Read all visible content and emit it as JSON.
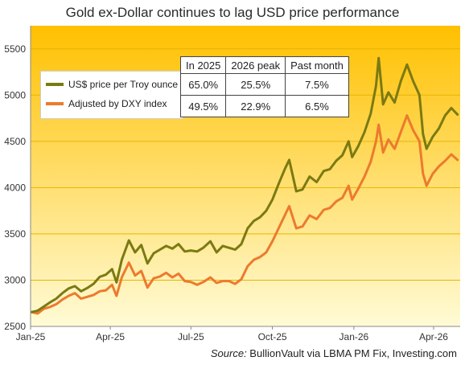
{
  "chart_data": {
    "type": "line",
    "title": "Gold ex-Dollar  continues  to lag USD price performance",
    "xlabel": "",
    "ylabel": "",
    "x_ticks": [
      "Jan-25",
      "Apr-25",
      "Jul-25",
      "Oct-25",
      "Jan-26",
      "Apr-26"
    ],
    "x_tick_dates": [
      "2025-01-01",
      "2025-04-01",
      "2025-07-01",
      "2025-10-01",
      "2026-01-01",
      "2026-04-01"
    ],
    "xlim": [
      "2025-01-01",
      "2026-05-01"
    ],
    "y_ticks": [
      2500,
      3000,
      3500,
      4000,
      4500,
      5000,
      5500
    ],
    "ylim": [
      2500,
      5750
    ],
    "grid": "horizontal",
    "legend_position": "top-left",
    "series": [
      {
        "name": "US$ price per Troy ounce",
        "color": "#7a7a12",
        "points": [
          [
            "2025-01-02",
            2655
          ],
          [
            "2025-01-09",
            2670
          ],
          [
            "2025-01-16",
            2715
          ],
          [
            "2025-01-23",
            2760
          ],
          [
            "2025-01-30",
            2800
          ],
          [
            "2025-02-06",
            2860
          ],
          [
            "2025-02-13",
            2910
          ],
          [
            "2025-02-20",
            2935
          ],
          [
            "2025-02-27",
            2880
          ],
          [
            "2025-03-06",
            2915
          ],
          [
            "2025-03-13",
            2960
          ],
          [
            "2025-03-20",
            3035
          ],
          [
            "2025-03-27",
            3060
          ],
          [
            "2025-04-03",
            3120
          ],
          [
            "2025-04-08",
            2975
          ],
          [
            "2025-04-14",
            3220
          ],
          [
            "2025-04-22",
            3430
          ],
          [
            "2025-04-29",
            3300
          ],
          [
            "2025-05-06",
            3380
          ],
          [
            "2025-05-13",
            3180
          ],
          [
            "2025-05-20",
            3290
          ],
          [
            "2025-05-27",
            3330
          ],
          [
            "2025-06-03",
            3370
          ],
          [
            "2025-06-10",
            3340
          ],
          [
            "2025-06-17",
            3390
          ],
          [
            "2025-06-24",
            3310
          ],
          [
            "2025-07-01",
            3320
          ],
          [
            "2025-07-08",
            3310
          ],
          [
            "2025-07-15",
            3350
          ],
          [
            "2025-07-23",
            3420
          ],
          [
            "2025-07-30",
            3300
          ],
          [
            "2025-08-06",
            3370
          ],
          [
            "2025-08-13",
            3350
          ],
          [
            "2025-08-20",
            3330
          ],
          [
            "2025-08-27",
            3390
          ],
          [
            "2025-09-03",
            3560
          ],
          [
            "2025-09-10",
            3640
          ],
          [
            "2025-09-17",
            3680
          ],
          [
            "2025-09-24",
            3750
          ],
          [
            "2025-10-01",
            3870
          ],
          [
            "2025-10-08",
            4040
          ],
          [
            "2025-10-15",
            4200
          ],
          [
            "2025-10-20",
            4300
          ],
          [
            "2025-10-28",
            3960
          ],
          [
            "2025-11-04",
            3980
          ],
          [
            "2025-11-12",
            4120
          ],
          [
            "2025-11-20",
            4060
          ],
          [
            "2025-11-28",
            4180
          ],
          [
            "2025-12-05",
            4200
          ],
          [
            "2025-12-12",
            4290
          ],
          [
            "2025-12-19",
            4350
          ],
          [
            "2025-12-26",
            4500
          ],
          [
            "2025-12-30",
            4330
          ],
          [
            "2026-01-06",
            4450
          ],
          [
            "2026-01-13",
            4600
          ],
          [
            "2026-01-20",
            4800
          ],
          [
            "2026-01-26",
            5100
          ],
          [
            "2026-01-29",
            5400
          ],
          [
            "2026-02-03",
            4900
          ],
          [
            "2026-02-09",
            5030
          ],
          [
            "2026-02-16",
            4920
          ],
          [
            "2026-02-23",
            5150
          ],
          [
            "2026-03-02",
            5330
          ],
          [
            "2026-03-09",
            5150
          ],
          [
            "2026-03-16",
            5000
          ],
          [
            "2026-03-20",
            4580
          ],
          [
            "2026-03-24",
            4420
          ],
          [
            "2026-03-31",
            4550
          ],
          [
            "2026-04-07",
            4640
          ],
          [
            "2026-04-14",
            4780
          ],
          [
            "2026-04-21",
            4860
          ],
          [
            "2026-04-28",
            4790
          ]
        ]
      },
      {
        "name": "Adjusted by DXY index",
        "color": "#ec7a2e",
        "points": [
          [
            "2025-01-02",
            2655
          ],
          [
            "2025-01-09",
            2640
          ],
          [
            "2025-01-16",
            2690
          ],
          [
            "2025-01-23",
            2710
          ],
          [
            "2025-01-30",
            2740
          ],
          [
            "2025-02-06",
            2790
          ],
          [
            "2025-02-13",
            2830
          ],
          [
            "2025-02-20",
            2860
          ],
          [
            "2025-02-27",
            2800
          ],
          [
            "2025-03-06",
            2820
          ],
          [
            "2025-03-13",
            2840
          ],
          [
            "2025-03-20",
            2880
          ],
          [
            "2025-03-27",
            2890
          ],
          [
            "2025-04-03",
            2950
          ],
          [
            "2025-04-08",
            2830
          ],
          [
            "2025-04-14",
            3030
          ],
          [
            "2025-04-22",
            3190
          ],
          [
            "2025-04-29",
            3050
          ],
          [
            "2025-05-06",
            3100
          ],
          [
            "2025-05-13",
            2920
          ],
          [
            "2025-05-20",
            3020
          ],
          [
            "2025-05-27",
            3040
          ],
          [
            "2025-06-03",
            3080
          ],
          [
            "2025-06-10",
            3030
          ],
          [
            "2025-06-17",
            3070
          ],
          [
            "2025-06-24",
            2990
          ],
          [
            "2025-07-01",
            2980
          ],
          [
            "2025-07-08",
            2950
          ],
          [
            "2025-07-15",
            2980
          ],
          [
            "2025-07-23",
            3030
          ],
          [
            "2025-07-30",
            2970
          ],
          [
            "2025-08-06",
            2990
          ],
          [
            "2025-08-13",
            2990
          ],
          [
            "2025-08-20",
            2960
          ],
          [
            "2025-08-27",
            3010
          ],
          [
            "2025-09-03",
            3150
          ],
          [
            "2025-09-10",
            3220
          ],
          [
            "2025-09-17",
            3250
          ],
          [
            "2025-09-24",
            3300
          ],
          [
            "2025-10-01",
            3420
          ],
          [
            "2025-10-08",
            3560
          ],
          [
            "2025-10-15",
            3700
          ],
          [
            "2025-10-20",
            3800
          ],
          [
            "2025-10-28",
            3560
          ],
          [
            "2025-11-04",
            3580
          ],
          [
            "2025-11-12",
            3700
          ],
          [
            "2025-11-20",
            3660
          ],
          [
            "2025-11-28",
            3760
          ],
          [
            "2025-12-05",
            3780
          ],
          [
            "2025-12-12",
            3850
          ],
          [
            "2025-12-19",
            3890
          ],
          [
            "2025-12-26",
            4020
          ],
          [
            "2025-12-30",
            3870
          ],
          [
            "2026-01-06",
            3990
          ],
          [
            "2026-01-13",
            4120
          ],
          [
            "2026-01-20",
            4280
          ],
          [
            "2026-01-26",
            4500
          ],
          [
            "2026-01-29",
            4680
          ],
          [
            "2026-02-03",
            4380
          ],
          [
            "2026-02-09",
            4520
          ],
          [
            "2026-02-16",
            4420
          ],
          [
            "2026-02-23",
            4600
          ],
          [
            "2026-03-02",
            4780
          ],
          [
            "2026-03-09",
            4620
          ],
          [
            "2026-03-16",
            4500
          ],
          [
            "2026-03-20",
            4150
          ],
          [
            "2026-03-24",
            4020
          ],
          [
            "2026-03-31",
            4150
          ],
          [
            "2026-04-07",
            4230
          ],
          [
            "2026-04-14",
            4290
          ],
          [
            "2026-04-21",
            4360
          ],
          [
            "2026-04-28",
            4300
          ]
        ]
      }
    ],
    "table": {
      "headers": [
        "In 2025",
        "2026 peak",
        "Past month"
      ],
      "rows": [
        {
          "series": "US$ price per Troy ounce",
          "values": [
            "65.0%",
            "25.5%",
            "7.5%"
          ]
        },
        {
          "series": "Adjusted by DXY index",
          "values": [
            "49.5%",
            "22.9%",
            "6.5%"
          ]
        }
      ]
    }
  },
  "legend": {
    "items": [
      {
        "label": "US$ price per Troy ounce",
        "color": "#7a7a12"
      },
      {
        "label": "Adjusted by DXY index",
        "color": "#ec7a2e"
      }
    ]
  },
  "source": {
    "key": "Source:",
    "text": " BullionVault via  LBMA PM Fix, Investing.com"
  },
  "colors": {
    "background_top": "#ffc000",
    "background_bottom": "#fffbd6",
    "gridline": "#e6b400"
  }
}
